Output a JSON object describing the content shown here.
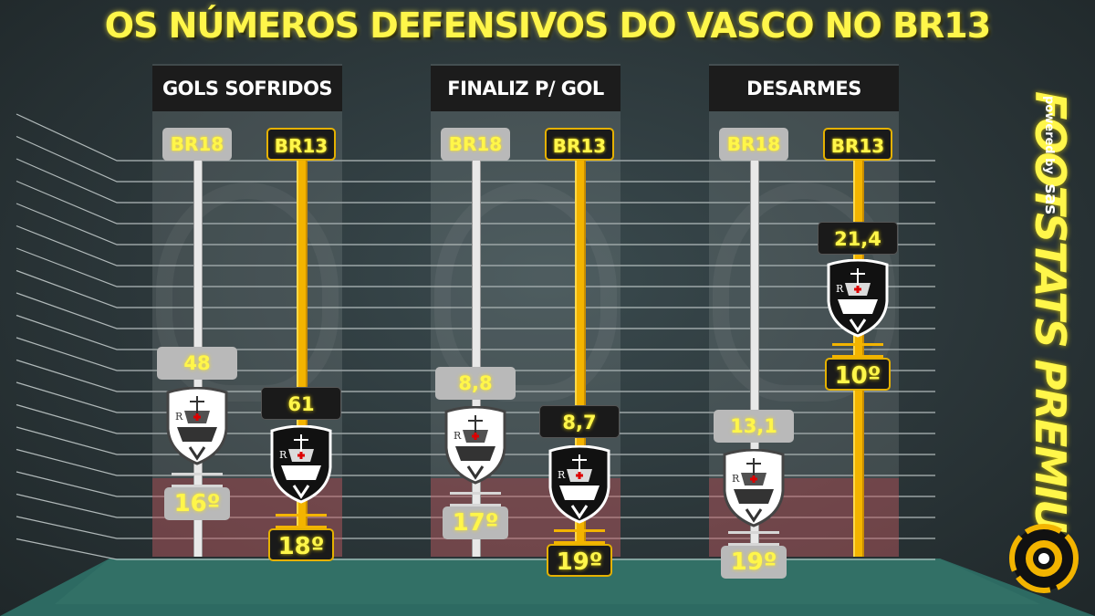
{
  "title": "OS NÚMEROS DEFENSIVOS DO VASCO NO BR13",
  "brand": {
    "name": "FOOTSTATS PREMIUM",
    "tagline": "powered by",
    "partner": "sas"
  },
  "colors": {
    "highlight": "#fff64a",
    "br13_gold": "#f3b400",
    "br18_gray": "#b9b9b9"
  },
  "icons": [
    "vasco-crest-icon",
    "footstats-ball-logo-icon"
  ],
  "chart_data": [
    {
      "type": "bar",
      "title": "GOLS SOFRIDOS",
      "categories": [
        "BR18",
        "BR13"
      ],
      "values": [
        48,
        61
      ],
      "value_labels": [
        "48",
        "61"
      ],
      "ranks": [
        "16º",
        "18º"
      ]
    },
    {
      "type": "bar",
      "title": "FINALIZ P/ GOL",
      "categories": [
        "BR18",
        "BR13"
      ],
      "values": [
        8.8,
        8.7
      ],
      "value_labels": [
        "8,8",
        "8,7"
      ],
      "ranks": [
        "17º",
        "19º"
      ]
    },
    {
      "type": "bar",
      "title": "DESARMES",
      "categories": [
        "BR18",
        "BR13"
      ],
      "values": [
        13.1,
        21.4
      ],
      "value_labels": [
        "13,1",
        "21,4"
      ],
      "ranks": [
        "19º",
        "10º"
      ]
    }
  ]
}
